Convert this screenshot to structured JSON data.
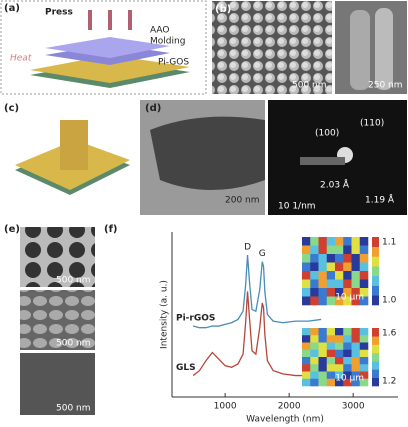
{
  "panels": {
    "a": {
      "label": "(a)",
      "press": "Press",
      "aao": "AAO",
      "molding": "Molding",
      "heat": "Heat",
      "pigos": "Pi-GOS"
    },
    "b": {
      "label": "(b)",
      "scale1": "500 nm",
      "scale2": "250 nm"
    },
    "c": {
      "label": "(c)"
    },
    "d": {
      "label": "(d)",
      "scale1": "200 nm",
      "scale2": "10 1/nm",
      "ring1": "(100)",
      "ring2": "(110)",
      "d1": "2.03 Å",
      "d2": "1.19 Å"
    },
    "e": {
      "label": "(e)",
      "scales": [
        "500 nm",
        "500 nm",
        "500 nm"
      ]
    },
    "f": {
      "label": "(f)",
      "map_scales": [
        "10 μm",
        "10 μm"
      ],
      "colorbars": [
        {
          "ticks": [
            "1.1",
            "1.0"
          ]
        },
        {
          "ticks": [
            "1.6",
            "1.2"
          ]
        }
      ]
    }
  },
  "chart_data": {
    "type": "line",
    "xlabel": "Wavelength (nm)",
    "ylabel": "Intensity (a. u.)",
    "annotations": [
      "D",
      "G"
    ],
    "x": [
      500,
      600,
      700,
      800,
      900,
      1000,
      1100,
      1200,
      1280,
      1320,
      1350,
      1380,
      1420,
      1480,
      1540,
      1580,
      1600,
      1620,
      1660,
      1750,
      1900,
      2100,
      2300,
      2500
    ],
    "series": [
      {
        "name": "Pi-rGOS",
        "color": "#4a8db3",
        "values": [
          4.3,
          4.2,
          4.2,
          4.3,
          4.3,
          4.4,
          4.5,
          4.7,
          5.2,
          6.8,
          8.6,
          7.0,
          5.3,
          5.2,
          6.5,
          8.2,
          7.9,
          6.4,
          5.0,
          4.6,
          4.5,
          4.6,
          4.6,
          4.7
        ]
      },
      {
        "name": "GLS",
        "color": "#b5473a",
        "values": [
          1.3,
          1.6,
          2.2,
          2.7,
          2.3,
          1.9,
          1.8,
          2.0,
          2.6,
          4.5,
          6.4,
          4.8,
          2.8,
          2.6,
          4.2,
          5.7,
          5.4,
          3.8,
          2.2,
          1.6,
          1.4,
          1.3,
          1.3,
          1.2
        ]
      }
    ],
    "xlim": [
      170,
      3700
    ],
    "ylim": [
      0,
      10
    ],
    "xticks": [
      1000,
      2000,
      3000
    ]
  }
}
